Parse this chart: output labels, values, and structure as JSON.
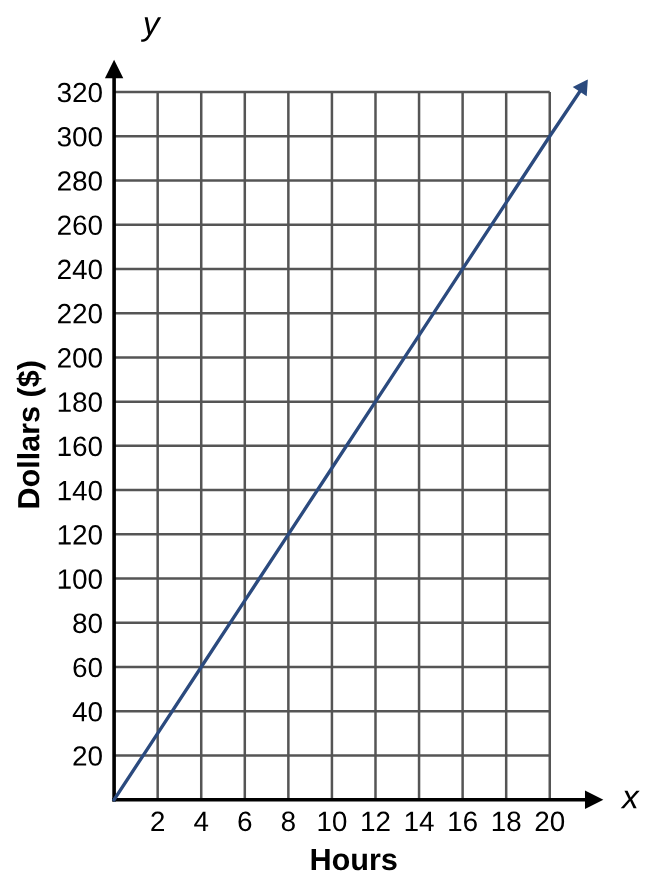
{
  "chart_data": {
    "type": "line",
    "xlabel": "Hours",
    "ylabel": "Dollars ($)",
    "annotations": [
      "x",
      "y"
    ],
    "x": [
      0,
      2,
      4,
      6,
      8,
      10,
      12,
      14,
      16,
      18,
      20,
      21.5
    ],
    "series": [
      {
        "color": "#2b4a7e",
        "values": [
          0,
          30,
          60,
          90,
          120,
          150,
          180,
          210,
          240,
          270,
          300,
          322
        ]
      }
    ],
    "xlim": [
      0,
      22
    ],
    "ylim": [
      0,
      330
    ],
    "xticks": [
      2,
      4,
      6,
      8,
      10,
      12,
      14,
      16,
      18,
      20
    ],
    "yticks": [
      20,
      40,
      60,
      80,
      100,
      120,
      140,
      160,
      180,
      200,
      220,
      240,
      260,
      280,
      300,
      320
    ],
    "grid": true,
    "legend": false,
    "marker": "none",
    "line_style": "solid"
  }
}
